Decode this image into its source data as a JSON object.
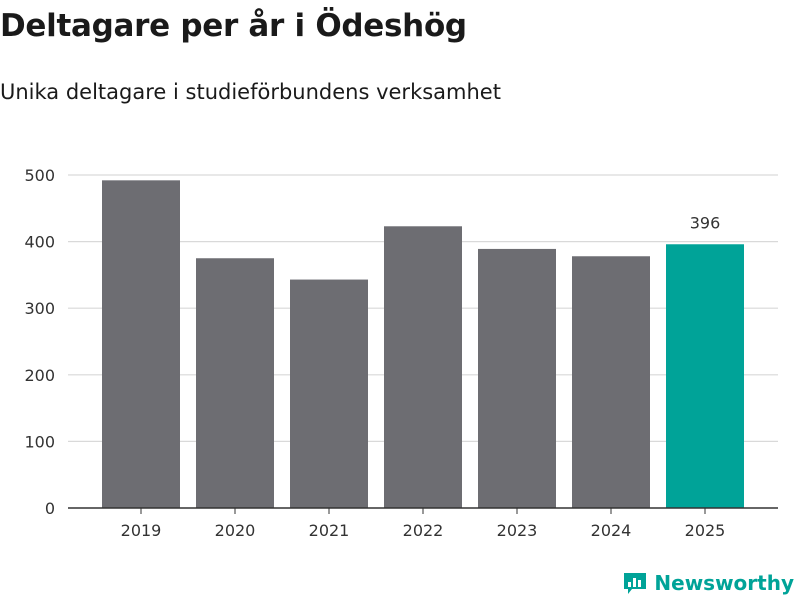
{
  "colors": {
    "bar": "#6d6d72",
    "highlight": "#00a398",
    "grid": "#d9d9d9",
    "axis": "#333333",
    "brand": "#00a398"
  },
  "brand": {
    "name": "Newsworthy",
    "icon": "newsworthy-logo-icon"
  },
  "chart_data": {
    "type": "bar",
    "title": "Deltagare per år i Ödeshög",
    "subtitle": "Unika deltagare i studieförbundens verksamhet",
    "xlabel": "",
    "ylabel": "",
    "categories": [
      "2019",
      "2020",
      "2021",
      "2022",
      "2023",
      "2024",
      "2025"
    ],
    "values": [
      492,
      375,
      343,
      423,
      389,
      378,
      396
    ],
    "highlight_index": 6,
    "data_labels": [
      {
        "index": 6,
        "text": "396"
      }
    ],
    "ylim": [
      0,
      500
    ],
    "yticks": [
      0,
      100,
      200,
      300,
      400,
      500
    ],
    "ytick_labels": [
      "0",
      "100",
      "200",
      "300",
      "400",
      "500"
    ],
    "grid": true,
    "legend": "none"
  }
}
